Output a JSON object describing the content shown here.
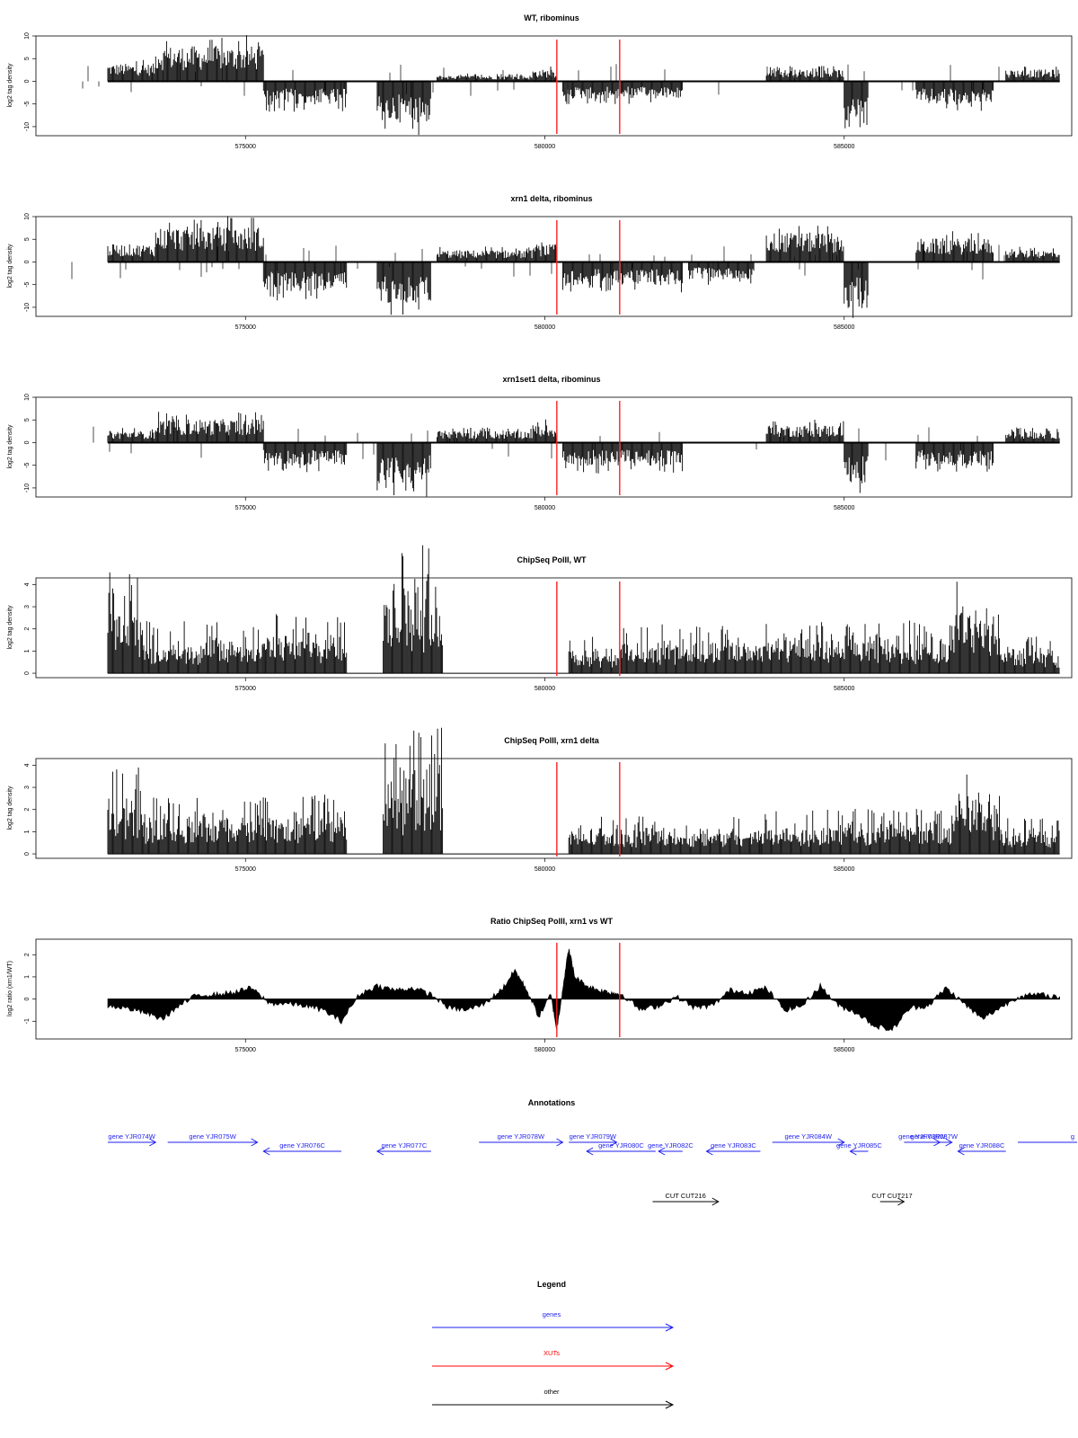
{
  "chart_data": [
    {
      "type": "bar",
      "title": "WT, ribominus",
      "ylabel": "log2 tag density",
      "ylim": [
        -12,
        10
      ],
      "yticks": [
        "10",
        "5",
        "0",
        "-5",
        "-10"
      ],
      "xlim": [
        571500,
        588800
      ],
      "xticks": [
        "575000",
        "580000",
        "585000"
      ],
      "markers": [
        580200,
        581250
      ],
      "series": [
        {
          "segments": [
            {
              "x": [
                572700,
                573500
              ],
              "value": 3
            },
            {
              "x": [
                573500,
                575300
              ],
              "value": 6
            },
            {
              "x": [
                575300,
                576700
              ],
              "value": -4
            },
            {
              "x": [
                577200,
                578100
              ],
              "value": -7
            },
            {
              "x": [
                578200,
                579800
              ],
              "value": 1
            },
            {
              "x": [
                579800,
                580200
              ],
              "value": 2
            },
            {
              "x": [
                580300,
                582300
              ],
              "value": -3
            },
            {
              "x": [
                583700,
                585000
              ],
              "value": 2
            },
            {
              "x": [
                585000,
                585400
              ],
              "value": -8
            },
            {
              "x": [
                586200,
                587500
              ],
              "value": -4
            },
            {
              "x": [
                587700,
                588600
              ],
              "value": 2
            }
          ]
        }
      ]
    },
    {
      "type": "bar",
      "title": "xrn1 delta, ribominus",
      "ylabel": "log2 tag density",
      "ylim": [
        -12,
        10
      ],
      "yticks": [
        "10",
        "5",
        "0",
        "-5",
        "-10"
      ],
      "xlim": [
        571500,
        588800
      ],
      "xticks": [
        "575000",
        "580000",
        "585000"
      ],
      "markers": [
        580200,
        581250
      ],
      "series": [
        {
          "segments": [
            {
              "x": [
                572700,
                573500
              ],
              "value": 3
            },
            {
              "x": [
                573500,
                575300
              ],
              "value": 6
            },
            {
              "x": [
                575300,
                576700
              ],
              "value": -5
            },
            {
              "x": [
                577200,
                578100
              ],
              "value": -7
            },
            {
              "x": [
                578200,
                579800
              ],
              "value": 2
            },
            {
              "x": [
                579800,
                580200
              ],
              "value": 3
            },
            {
              "x": [
                580300,
                582300
              ],
              "value": -4
            },
            {
              "x": [
                582400,
                583500
              ],
              "value": -3
            },
            {
              "x": [
                583700,
                585000
              ],
              "value": 5
            },
            {
              "x": [
                585000,
                585400
              ],
              "value": -8
            },
            {
              "x": [
                586200,
                587500
              ],
              "value": 4
            },
            {
              "x": [
                587700,
                588600
              ],
              "value": 2
            }
          ]
        }
      ]
    },
    {
      "type": "bar",
      "title": "xrn1set1 delta, ribominus",
      "ylabel": "log2 tag density",
      "ylim": [
        -12,
        10
      ],
      "yticks": [
        "10",
        "5",
        "0",
        "-5",
        "-10"
      ],
      "xlim": [
        571500,
        588800
      ],
      "xticks": [
        "575000",
        "580000",
        "585000"
      ],
      "markers": [
        580200,
        581250
      ],
      "series": [
        {
          "segments": [
            {
              "x": [
                572700,
                573500
              ],
              "value": 2
            },
            {
              "x": [
                573500,
                575300
              ],
              "value": 4
            },
            {
              "x": [
                575300,
                576700
              ],
              "value": -4
            },
            {
              "x": [
                577200,
                578100
              ],
              "value": -7
            },
            {
              "x": [
                578200,
                579800
              ],
              "value": 2
            },
            {
              "x": [
                579800,
                580200
              ],
              "value": 3
            },
            {
              "x": [
                580300,
                582300
              ],
              "value": -4
            },
            {
              "x": [
                583700,
                585000
              ],
              "value": 3
            },
            {
              "x": [
                585000,
                585400
              ],
              "value": -7
            },
            {
              "x": [
                586200,
                587500
              ],
              "value": -4
            },
            {
              "x": [
                587700,
                588600
              ],
              "value": 2
            }
          ]
        }
      ]
    },
    {
      "type": "bar",
      "title": "ChipSeq PolII, WT",
      "ylabel": "log2 tag density",
      "ylim": [
        -0.2,
        4.3
      ],
      "yticks": [
        "4",
        "3",
        "2",
        "1",
        "0"
      ],
      "xlim": [
        571500,
        588800
      ],
      "xticks": [
        "575000",
        "580000",
        "585000"
      ],
      "markers": [
        580200,
        581250
      ],
      "series": [
        {
          "segments": [
            {
              "x": [
                572700,
                573300
              ],
              "value": 2.8
            },
            {
              "x": [
                573300,
                575300
              ],
              "value": 1.4
            },
            {
              "x": [
                575300,
                576700
              ],
              "value": 1.6
            },
            {
              "x": [
                577300,
                578300
              ],
              "value": 3.5
            },
            {
              "x": [
                580400,
                581300
              ],
              "value": 1
            },
            {
              "x": [
                581300,
                583600
              ],
              "value": 1.3
            },
            {
              "x": [
                583600,
                586800
              ],
              "value": 1.4
            },
            {
              "x": [
                586800,
                587600
              ],
              "value": 2.5
            },
            {
              "x": [
                587600,
                588600
              ],
              "value": 1
            }
          ]
        }
      ]
    },
    {
      "type": "bar",
      "title": "ChipSeq PolII, xrn1 delta",
      "ylabel": "log2 tag density",
      "ylim": [
        -0.2,
        4.3
      ],
      "yticks": [
        "4",
        "3",
        "2",
        "1",
        "0"
      ],
      "xlim": [
        571500,
        588800
      ],
      "xticks": [
        "575000",
        "580000",
        "585000"
      ],
      "markers": [
        580200,
        581250
      ],
      "series": [
        {
          "segments": [
            {
              "x": [
                572700,
                573300
              ],
              "value": 2.3
            },
            {
              "x": [
                573300,
                575300
              ],
              "value": 1.5
            },
            {
              "x": [
                575300,
                576700
              ],
              "value": 1.6
            },
            {
              "x": [
                577300,
                578300
              ],
              "value": 3.4
            },
            {
              "x": [
                580400,
                583600
              ],
              "value": 1
            },
            {
              "x": [
                583600,
                586800
              ],
              "value": 1.2
            },
            {
              "x": [
                586800,
                587600
              ],
              "value": 2.3
            },
            {
              "x": [
                587600,
                588600
              ],
              "value": 1
            }
          ]
        }
      ]
    },
    {
      "type": "area",
      "title": "Ratio ChipSeq PolII, xrn1 vs WT",
      "ylabel": "log2 ratio (xrn1/WT)",
      "ylim": [
        -1.8,
        2.7
      ],
      "yticks": [
        "2",
        "1",
        "0",
        "-1"
      ],
      "xlim": [
        571500,
        588800
      ],
      "xticks": [
        "575000",
        "580000",
        "585000"
      ],
      "markers": [
        580200,
        581250
      ],
      "series": [
        {
          "x": [
            572700,
            573000,
            573300,
            573600,
            573900,
            574200,
            574500,
            574800,
            575100,
            575400,
            575700,
            576000,
            576300,
            576600,
            576900,
            577200,
            577500,
            577800,
            578100,
            578400,
            578700,
            579000,
            579300,
            579500,
            579700,
            579900,
            580100,
            580200,
            580300,
            580400,
            580500,
            580700,
            580900,
            581100,
            581300,
            581600,
            581900,
            582200,
            582500,
            582800,
            583100,
            583400,
            583700,
            584000,
            584300,
            584600,
            584900,
            585200,
            585500,
            585800,
            586100,
            586400,
            586700,
            587000,
            587300,
            587600,
            587900,
            588200,
            588600
          ],
          "y": [
            -0.3,
            -0.4,
            -0.6,
            -0.9,
            -0.3,
            0.2,
            0.2,
            0.3,
            0.5,
            -0.2,
            -0.2,
            -0.3,
            -0.5,
            -1.0,
            0.2,
            0.6,
            0.4,
            0.5,
            0.2,
            -0.4,
            -0.5,
            -0.2,
            0.5,
            1.3,
            0.4,
            -0.8,
            0.2,
            -1.4,
            0.5,
            2.3,
            1.0,
            0.6,
            0.4,
            0.3,
            0.2,
            -0.5,
            -0.3,
            0.1,
            -0.4,
            -0.3,
            0.4,
            0.3,
            0.5,
            -0.5,
            -0.3,
            0.6,
            -0.3,
            -0.6,
            -1.2,
            -1.4,
            -0.4,
            -0.3,
            0.5,
            -0.2,
            -0.9,
            -0.4,
            0.1,
            0.2,
            0.1
          ]
        }
      ]
    }
  ],
  "annotations": {
    "title": "Annotations",
    "rows": [
      {
        "label": "gene YJR074W",
        "x1": 572700,
        "x2": 573500,
        "dir": "right",
        "color": "#1f1ff0",
        "lane": 0
      },
      {
        "label": "gene YJR075W",
        "x1": 573700,
        "x2": 575200,
        "dir": "right",
        "color": "#1f1ff0",
        "lane": 0
      },
      {
        "label": "gene YJR076C",
        "x1": 575300,
        "x2": 576600,
        "dir": "left",
        "color": "#1f1ff0",
        "lane": 1
      },
      {
        "label": "gene YJR077C",
        "x1": 577200,
        "x2": 578100,
        "dir": "left",
        "color": "#1f1ff0",
        "lane": 1
      },
      {
        "label": "gene YJR078W",
        "x1": 578900,
        "x2": 580300,
        "dir": "right",
        "color": "#1f1ff0",
        "lane": 0
      },
      {
        "label": "gene YJR079W",
        "x1": 580400,
        "x2": 581200,
        "dir": "right",
        "color": "#1f1ff0",
        "lane": 0
      },
      {
        "label": "gene YJR080C",
        "x1": 580700,
        "x2": 581850,
        "dir": "left",
        "color": "#1f1ff0",
        "lane": 1
      },
      {
        "label": "gene YJR082C",
        "x1": 581900,
        "x2": 582300,
        "dir": "left",
        "color": "#1f1ff0",
        "lane": 1
      },
      {
        "label": "gene YJR083C",
        "x1": 582700,
        "x2": 583600,
        "dir": "left",
        "color": "#1f1ff0",
        "lane": 1
      },
      {
        "label": "gene YJR084W",
        "x1": 583800,
        "x2": 585000,
        "dir": "right",
        "color": "#1f1ff0",
        "lane": 0
      },
      {
        "label": "gene YJR085C",
        "x1": 585100,
        "x2": 585400,
        "dir": "left",
        "color": "#1f1ff0",
        "lane": 1
      },
      {
        "label": "gene YJR086W",
        "x1": 586000,
        "x2": 586600,
        "dir": "right",
        "color": "#1f1ff0",
        "lane": 0
      },
      {
        "label": "gene YJR087W",
        "x1": 586200,
        "x2": 586800,
        "dir": "right",
        "color": "#1f1ff0",
        "lane": 0
      },
      {
        "label": "gene YJR088C",
        "x1": 586900,
        "x2": 587700,
        "dir": "left",
        "color": "#1f1ff0",
        "lane": 1
      },
      {
        "label": "g",
        "x1": 587900,
        "x2": 589400,
        "dir": "right",
        "color": "#1f1ff0",
        "lane": 0
      },
      {
        "label": "CUT CUT216",
        "x1": 581800,
        "x2": 582900,
        "dir": "right",
        "color": "#000000",
        "lane": 2
      },
      {
        "label": "CUT CUT217",
        "x1": 585600,
        "x2": 586000,
        "dir": "right",
        "color": "#000000",
        "lane": 2
      }
    ]
  },
  "legend": {
    "title": "Legend",
    "items": [
      {
        "label": "genes",
        "color": "#1f1ff0"
      },
      {
        "label": "XUTs",
        "color": "#ff0000"
      },
      {
        "label": "other",
        "color": "#000000"
      }
    ]
  }
}
